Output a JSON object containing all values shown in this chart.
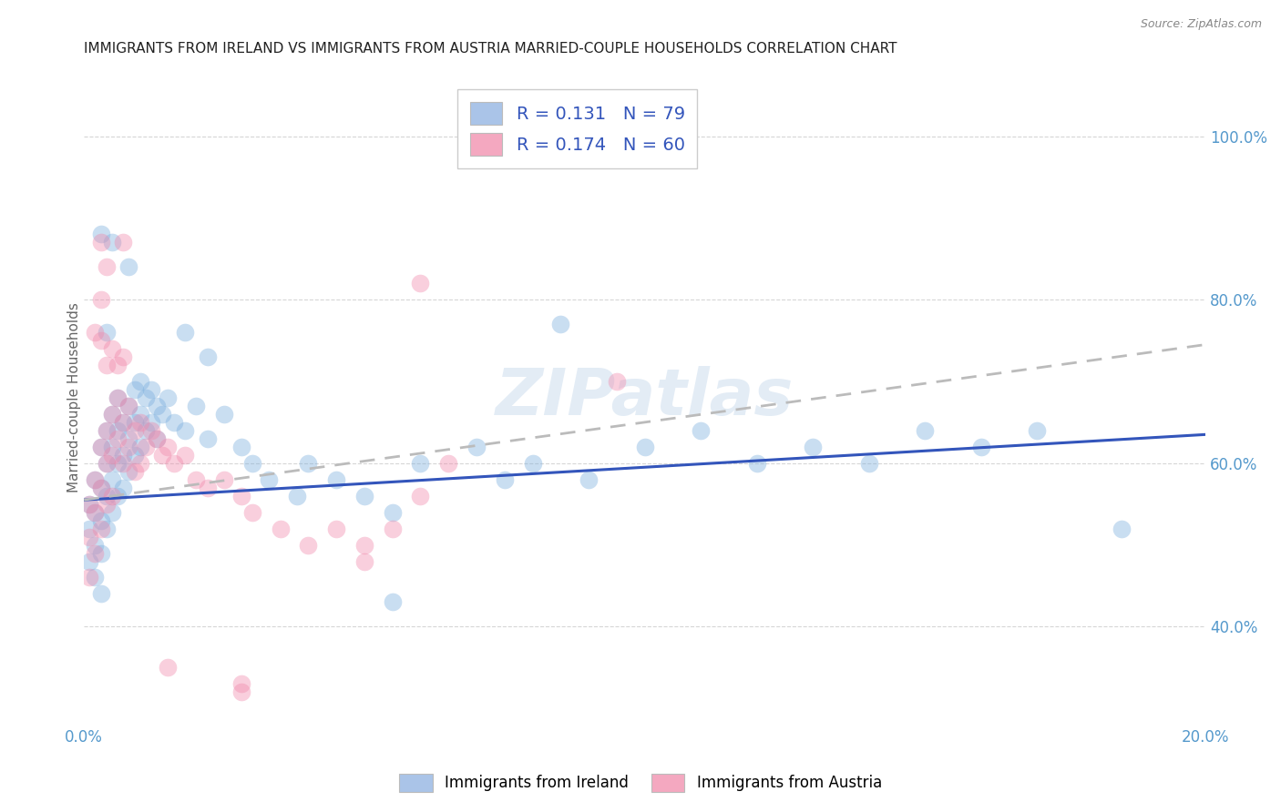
{
  "title": "IMMIGRANTS FROM IRELAND VS IMMIGRANTS FROM AUSTRIA MARRIED-COUPLE HOUSEHOLDS CORRELATION CHART",
  "source": "Source: ZipAtlas.com",
  "ylabel_label": "Married-couple Households",
  "legend_ireland_color": "#aac4e8",
  "legend_austria_color": "#f4a8c0",
  "ireland_color": "#7aaedd",
  "austria_color": "#f088aa",
  "ireland_line_color": "#3355bb",
  "austria_line_color": "#cc3366",
  "background_color": "#ffffff",
  "grid_color": "#cccccc",
  "title_color": "#222222",
  "axis_tick_color": "#5599cc",
  "xlim": [
    0.0,
    0.2
  ],
  "ylim": [
    0.28,
    1.08
  ],
  "x_ticks": [
    0.0,
    0.05,
    0.1,
    0.15,
    0.2
  ],
  "x_tick_labels": [
    "0.0%",
    "",
    "",
    "",
    "20.0%"
  ],
  "y_ticks_right": [
    0.4,
    0.6,
    0.8,
    1.0
  ],
  "y_tick_labels_right": [
    "40.0%",
    "60.0%",
    "80.0%",
    "100.0%"
  ],
  "ireland_x": [
    0.001,
    0.001,
    0.001,
    0.002,
    0.002,
    0.002,
    0.002,
    0.003,
    0.003,
    0.003,
    0.003,
    0.003,
    0.004,
    0.004,
    0.004,
    0.004,
    0.005,
    0.005,
    0.005,
    0.005,
    0.006,
    0.006,
    0.006,
    0.006,
    0.007,
    0.007,
    0.007,
    0.008,
    0.008,
    0.008,
    0.009,
    0.009,
    0.009,
    0.01,
    0.01,
    0.01,
    0.011,
    0.011,
    0.012,
    0.012,
    0.013,
    0.013,
    0.014,
    0.015,
    0.016,
    0.018,
    0.02,
    0.022,
    0.025,
    0.028,
    0.03,
    0.033,
    0.038,
    0.04,
    0.045,
    0.05,
    0.055,
    0.06,
    0.07,
    0.075,
    0.08,
    0.09,
    0.1,
    0.11,
    0.12,
    0.13,
    0.14,
    0.15,
    0.16,
    0.17,
    0.018,
    0.022,
    0.008,
    0.085,
    0.005,
    0.003,
    0.004,
    0.055,
    0.185
  ],
  "ireland_y": [
    0.55,
    0.52,
    0.48,
    0.58,
    0.54,
    0.5,
    0.46,
    0.62,
    0.57,
    0.53,
    0.49,
    0.44,
    0.64,
    0.6,
    0.56,
    0.52,
    0.66,
    0.62,
    0.58,
    0.54,
    0.68,
    0.64,
    0.6,
    0.56,
    0.65,
    0.61,
    0.57,
    0.67,
    0.63,
    0.59,
    0.69,
    0.65,
    0.61,
    0.7,
    0.66,
    0.62,
    0.68,
    0.64,
    0.69,
    0.65,
    0.67,
    0.63,
    0.66,
    0.68,
    0.65,
    0.64,
    0.67,
    0.63,
    0.66,
    0.62,
    0.6,
    0.58,
    0.56,
    0.6,
    0.58,
    0.56,
    0.54,
    0.6,
    0.62,
    0.58,
    0.6,
    0.58,
    0.62,
    0.64,
    0.6,
    0.62,
    0.6,
    0.64,
    0.62,
    0.64,
    0.76,
    0.73,
    0.84,
    0.77,
    0.87,
    0.88,
    0.76,
    0.43,
    0.52
  ],
  "austria_x": [
    0.001,
    0.001,
    0.001,
    0.002,
    0.002,
    0.002,
    0.003,
    0.003,
    0.003,
    0.004,
    0.004,
    0.004,
    0.005,
    0.005,
    0.005,
    0.006,
    0.006,
    0.007,
    0.007,
    0.008,
    0.008,
    0.009,
    0.009,
    0.01,
    0.01,
    0.011,
    0.012,
    0.013,
    0.014,
    0.015,
    0.016,
    0.018,
    0.02,
    0.022,
    0.025,
    0.028,
    0.03,
    0.035,
    0.04,
    0.045,
    0.05,
    0.055,
    0.06,
    0.065,
    0.002,
    0.003,
    0.004,
    0.003,
    0.005,
    0.006,
    0.003,
    0.004,
    0.007,
    0.007,
    0.06,
    0.095,
    0.015,
    0.028,
    0.028,
    0.05
  ],
  "austria_y": [
    0.55,
    0.51,
    0.46,
    0.58,
    0.54,
    0.49,
    0.62,
    0.57,
    0.52,
    0.64,
    0.6,
    0.55,
    0.66,
    0.61,
    0.56,
    0.68,
    0.63,
    0.65,
    0.6,
    0.67,
    0.62,
    0.64,
    0.59,
    0.65,
    0.6,
    0.62,
    0.64,
    0.63,
    0.61,
    0.62,
    0.6,
    0.61,
    0.58,
    0.57,
    0.58,
    0.56,
    0.54,
    0.52,
    0.5,
    0.52,
    0.5,
    0.52,
    0.56,
    0.6,
    0.76,
    0.75,
    0.72,
    0.8,
    0.74,
    0.72,
    0.87,
    0.84,
    0.87,
    0.73,
    0.82,
    0.7,
    0.35,
    0.33,
    0.32,
    0.48
  ],
  "ireland_R": 0.131,
  "ireland_N": 79,
  "austria_R": 0.174,
  "austria_N": 60,
  "watermark": "ZIPatlas",
  "figsize": [
    14.06,
    8.92
  ],
  "dpi": 100
}
